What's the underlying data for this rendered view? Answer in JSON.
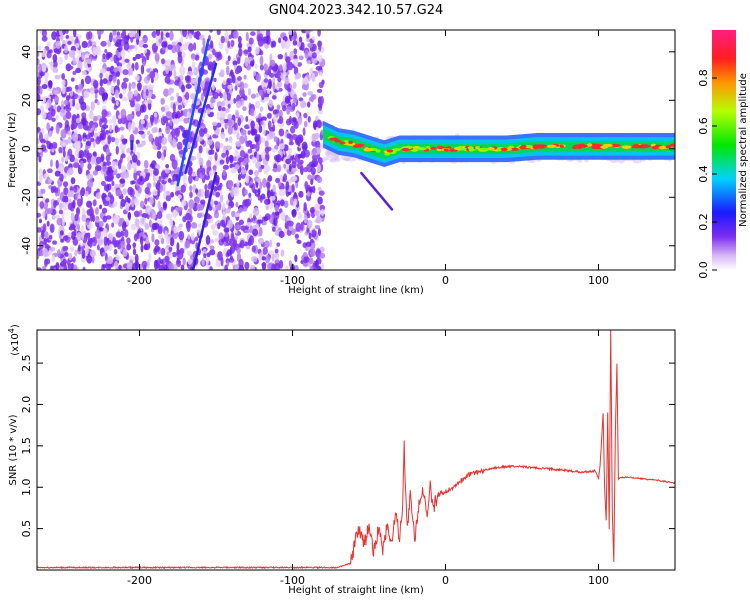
{
  "figure": {
    "title": "GN04.2023.342.10.57.G24"
  },
  "chart_data": [
    {
      "type": "heatmap",
      "xlabel": "Height of straight line (km)",
      "ylabel": "Frequency (Hz)",
      "xlim": [
        -267,
        150
      ],
      "ylim": [
        -50,
        49
      ],
      "x_ticks": [
        "-200",
        "-100",
        "0",
        "100"
      ],
      "x_tick_values": [
        -200,
        -100,
        0,
        100
      ],
      "y_ticks": [
        "40",
        "20",
        "0",
        "-20",
        "-40"
      ],
      "y_tick_values": [
        40,
        20,
        0,
        -20,
        -40
      ],
      "colorbar": {
        "label": "Normalized spectral amplitude",
        "range": [
          0.0,
          1.0
        ],
        "ticks": [
          "0.0",
          "0.2",
          "0.4",
          "0.6",
          "0.8"
        ],
        "tick_values": [
          0.0,
          0.2,
          0.4,
          0.6,
          0.8
        ],
        "colormap": "rainbow: white, purple, blue, cyan, green, yellow, orange, red, magenta"
      },
      "noise_region_x_max": -80,
      "main_band_center_hz": [
        [
          -80,
          6
        ],
        [
          -70,
          3
        ],
        [
          -60,
          2
        ],
        [
          -50,
          0
        ],
        [
          -40,
          -2
        ],
        [
          -30,
          0
        ],
        [
          -20,
          0
        ],
        [
          0,
          0
        ],
        [
          20,
          0
        ],
        [
          40,
          0
        ],
        [
          60,
          1
        ],
        [
          80,
          1
        ],
        [
          100,
          1
        ],
        [
          120,
          1
        ],
        [
          150,
          1
        ]
      ],
      "streaks": [
        {
          "x": [
            -175,
            -155
          ],
          "y": [
            -15,
            45
          ]
        },
        {
          "x": [
            -170,
            -150
          ],
          "y": [
            -10,
            35
          ]
        },
        {
          "x": [
            -165,
            -150
          ],
          "y": [
            -50,
            -10
          ]
        },
        {
          "x": [
            -205,
            -205
          ],
          "y": [
            0,
            3
          ]
        },
        {
          "x": [
            -55,
            -35
          ],
          "y": [
            -10,
            -25
          ]
        }
      ],
      "grid": false
    },
    {
      "type": "line",
      "xlabel": "Height of straight line (km)",
      "ylabel": "SNR (10 * v/v)",
      "y_scale_label": "(x10",
      "y_scale_exp": "4",
      "y_scale_close": ")",
      "xlim": [
        -267,
        150
      ],
      "ylim": [
        0,
        2.9
      ],
      "x_ticks": [
        "-200",
        "-100",
        "0",
        "100"
      ],
      "x_tick_values": [
        -200,
        -100,
        0,
        100
      ],
      "y_ticks": [
        "0.5",
        "1.0",
        "1.5",
        "2.0",
        "2.5"
      ],
      "y_tick_values": [
        0.5,
        1.0,
        1.5,
        2.0,
        2.5
      ],
      "series": [
        {
          "color": "#e8322f",
          "points": [
            [
              -267,
              0.03
            ],
            [
              -200,
              0.03
            ],
            [
              -120,
              0.03
            ],
            [
              -70,
              0.03
            ],
            [
              -62,
              0.08
            ],
            [
              -60,
              0.25
            ],
            [
              -57,
              0.5
            ],
            [
              -53,
              0.3
            ],
            [
              -50,
              0.55
            ],
            [
              -47,
              0.2
            ],
            [
              -44,
              0.5
            ],
            [
              -41,
              0.25
            ],
            [
              -38,
              0.55
            ],
            [
              -35,
              0.3
            ],
            [
              -33,
              0.7
            ],
            [
              -30,
              0.4
            ],
            [
              -28,
              0.8
            ],
            [
              -27,
              1.48
            ],
            [
              -25,
              0.5
            ],
            [
              -23,
              0.9
            ],
            [
              -20,
              0.35
            ],
            [
              -18,
              0.75
            ],
            [
              -15,
              1.0
            ],
            [
              -12,
              0.6
            ],
            [
              -10,
              1.0
            ],
            [
              -8,
              0.75
            ],
            [
              -5,
              0.9
            ],
            [
              0,
              0.95
            ],
            [
              5,
              1.0
            ],
            [
              10,
              1.08
            ],
            [
              15,
              1.15
            ],
            [
              20,
              1.18
            ],
            [
              25,
              1.2
            ],
            [
              30,
              1.23
            ],
            [
              40,
              1.25
            ],
            [
              50,
              1.25
            ],
            [
              60,
              1.23
            ],
            [
              70,
              1.22
            ],
            [
              80,
              1.2
            ],
            [
              90,
              1.18
            ],
            [
              98,
              1.2
            ],
            [
              100,
              1.1
            ],
            [
              101,
              1.25
            ],
            [
              103,
              1.9
            ],
            [
              104,
              1.0
            ],
            [
              105,
              0.6
            ],
            [
              106,
              1.9
            ],
            [
              107,
              0.5
            ],
            [
              108,
              2.9
            ],
            [
              109,
              0.7
            ],
            [
              110,
              0.1
            ],
            [
              111,
              1.6
            ],
            [
              112,
              2.5
            ],
            [
              113,
              1.1
            ],
            [
              115,
              1.12
            ],
            [
              120,
              1.12
            ],
            [
              130,
              1.1
            ],
            [
              140,
              1.08
            ],
            [
              150,
              1.05
            ]
          ]
        }
      ],
      "grid": false
    }
  ]
}
